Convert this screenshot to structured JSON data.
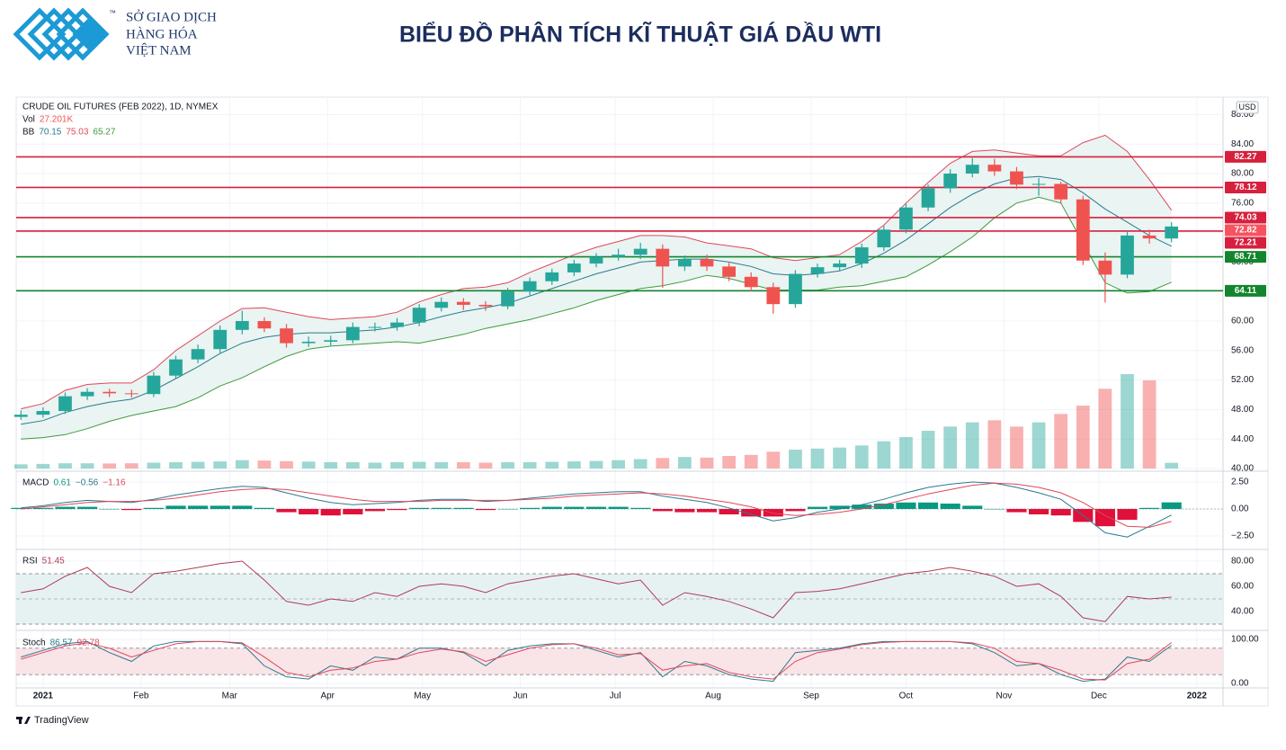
{
  "header": {
    "logo_text": [
      "SỞ GIAO DỊCH",
      "HÀNG HÓA",
      "VIỆT NAM"
    ],
    "trademark": "™",
    "title": "BIỂU ĐỒ PHÂN TÍCH KĨ THUẬT GIÁ DẦU WTI"
  },
  "footer": {
    "brand": "TradingView"
  },
  "chart_data": [
    {
      "type": "candlestick",
      "title": "CRUDE OIL FUTURES (FEB 2022), 1D, NYMEX",
      "currency": "USD",
      "x": [
        -7,
        0,
        7,
        14,
        21,
        28,
        35,
        42,
        49,
        56,
        63,
        70,
        77,
        84,
        91,
        98,
        105,
        112,
        119,
        126,
        133,
        140,
        147,
        154,
        161,
        168,
        175,
        182,
        189,
        196,
        203,
        210,
        217,
        224,
        231,
        238,
        245,
        252,
        259,
        266,
        273,
        280,
        287,
        294,
        301,
        308,
        315,
        322,
        329,
        336,
        343,
        350,
        357
      ],
      "xlim": [
        -8.5,
        373.3
      ],
      "xticks": [
        {
          "value": 0,
          "label": "2021"
        },
        {
          "value": 31,
          "label": "Feb"
        },
        {
          "value": 59,
          "label": "Mar"
        },
        {
          "value": 90,
          "label": "Apr"
        },
        {
          "value": 120,
          "label": "May"
        },
        {
          "value": 151,
          "label": "Jun"
        },
        {
          "value": 181,
          "label": "Jul"
        },
        {
          "value": 212,
          "label": "Aug"
        },
        {
          "value": 243,
          "label": "Sep"
        },
        {
          "value": 273,
          "label": "Oct"
        },
        {
          "value": 304,
          "label": "Nov"
        },
        {
          "value": 334,
          "label": "Dec"
        },
        {
          "value": 365,
          "label": "2022"
        }
      ],
      "open": [
        47.0,
        47.3,
        47.8,
        49.8,
        50.4,
        50.2,
        50.1,
        52.6,
        54.8,
        56.2,
        58.8,
        60.0,
        59.0,
        57.0,
        57.2,
        57.4,
        59.2,
        59.2,
        59.8,
        61.8,
        62.6,
        62.2,
        62.0,
        64.0,
        65.4,
        66.6,
        67.8,
        68.7,
        69.0,
        69.8,
        67.4,
        68.4,
        67.4,
        66.0,
        64.6,
        62.3,
        66.4,
        67.3,
        67.8,
        70.0,
        72.4,
        75.4,
        78.0,
        80.0,
        81.2,
        80.3,
        78.5,
        78.6,
        76.5,
        68.2,
        66.3,
        71.6,
        71.2
      ],
      "high": [
        47.9,
        48.3,
        50.3,
        50.9,
        50.8,
        50.7,
        53.1,
        55.3,
        56.8,
        59.4,
        61.4,
        60.5,
        59.6,
        57.9,
        58.0,
        59.8,
        59.8,
        60.4,
        62.3,
        63.2,
        63.1,
        62.7,
        64.5,
        65.9,
        67.1,
        68.3,
        69.2,
        69.8,
        70.6,
        70.4,
        68.9,
        69.0,
        67.9,
        66.6,
        65.2,
        66.9,
        67.8,
        68.3,
        70.5,
        72.9,
        75.9,
        78.5,
        80.6,
        82.1,
        82.0,
        80.9,
        79.4,
        78.9,
        77.0,
        69.3,
        72.1,
        72.4,
        73.4
      ],
      "low": [
        46.6,
        46.9,
        47.4,
        49.3,
        49.7,
        49.6,
        49.7,
        52.2,
        54.3,
        55.7,
        58.2,
        58.5,
        56.4,
        56.5,
        56.7,
        57.0,
        58.6,
        58.7,
        59.3,
        61.3,
        61.5,
        61.4,
        61.6,
        63.5,
        64.9,
        66.1,
        67.3,
        68.2,
        68.4,
        64.5,
        66.8,
        66.8,
        65.4,
        64.0,
        61.0,
        61.8,
        65.9,
        66.8,
        67.2,
        69.5,
        71.9,
        74.9,
        77.4,
        79.5,
        79.7,
        77.9,
        77.0,
        75.9,
        67.6,
        62.5,
        65.8,
        70.5,
        70.7
      ],
      "close": [
        47.3,
        47.8,
        49.8,
        50.4,
        50.2,
        50.1,
        52.6,
        54.8,
        56.2,
        58.8,
        60.0,
        59.0,
        57.0,
        57.2,
        57.4,
        59.2,
        59.2,
        59.8,
        61.8,
        62.6,
        62.2,
        62.0,
        64.0,
        65.4,
        66.6,
        67.8,
        68.7,
        69.0,
        69.8,
        67.4,
        68.4,
        67.4,
        66.0,
        64.6,
        62.3,
        66.4,
        67.3,
        67.8,
        70.0,
        72.4,
        75.4,
        78.0,
        80.0,
        81.2,
        80.3,
        78.5,
        78.6,
        76.5,
        68.2,
        66.3,
        71.6,
        71.2,
        72.82
      ],
      "up_color": "#26a69a",
      "down_color": "#ef5350",
      "last_price": 72.82,
      "last_price_color": "#f7525f",
      "ylim": [
        40,
        90.37
      ],
      "yticks": [
        {
          "value": 40,
          "label": "40.00"
        },
        {
          "value": 44,
          "label": "44.00"
        },
        {
          "value": 48,
          "label": "48.00"
        },
        {
          "value": 52,
          "label": "52.00"
        },
        {
          "value": 56,
          "label": "56.00"
        },
        {
          "value": 60,
          "label": "60.00"
        },
        {
          "value": 64,
          "label": "64.00"
        },
        {
          "value": 68,
          "label": "68.00"
        },
        {
          "value": 72,
          "label": "72.00"
        },
        {
          "value": 76,
          "label": "76.00"
        },
        {
          "value": 80,
          "label": "80.00"
        },
        {
          "value": 84,
          "label": "84.00"
        },
        {
          "value": 88,
          "label": "88.00"
        }
      ],
      "grid": true,
      "volume": {
        "name": "Vol",
        "last_label": "27.201K",
        "label_color": "#ef5350",
        "values": [
          20,
          22,
          25,
          25,
          24,
          25,
          28,
          30,
          32,
          34,
          40,
          38,
          35,
          33,
          30,
          30,
          28,
          30,
          32,
          30,
          30,
          28,
          30,
          30,
          32,
          34,
          36,
          40,
          45,
          50,
          55,
          52,
          60,
          65,
          80,
          90,
          95,
          100,
          110,
          130,
          150,
          180,
          200,
          220,
          230,
          200,
          220,
          260,
          300,
          380,
          450,
          420,
          27.201
        ]
      },
      "bollinger": {
        "name": "BB",
        "fill": "#e9f4f3",
        "series": [
          {
            "color": "#2b7a8c",
            "values": [
              46.0,
              46.5,
              47.6,
              48.4,
              49.0,
              49.4,
              50.6,
              52.2,
              53.8,
              55.6,
              57.0,
              57.8,
              58.2,
              58.4,
              58.4,
              58.6,
              58.8,
              59.2,
              59.8,
              60.6,
              61.3,
              61.8,
              62.4,
              63.4,
              64.4,
              65.4,
              66.4,
              67.2,
              68.0,
              68.2,
              68.4,
              68.4,
              68.0,
              67.4,
              66.4,
              66.2,
              66.4,
              66.8,
              67.8,
              69.2,
              71.0,
              73.2,
              75.4,
              77.2,
              78.6,
              79.4,
              79.6,
              79.2,
              77.4,
              75.2,
              73.4,
              71.6,
              70.15
            ]
          },
          {
            "color": "#e0475a",
            "values": [
              48.1,
              48.8,
              50.6,
              51.4,
              51.6,
              51.6,
              53.4,
              56.0,
              58.0,
              60.0,
              61.7,
              61.8,
              61.2,
              60.6,
              60.2,
              60.4,
              60.6,
              61.2,
              62.6,
              63.6,
              64.4,
              64.6,
              65.2,
              66.6,
              67.8,
              69.0,
              70.0,
              70.8,
              71.6,
              71.6,
              71.4,
              70.6,
              70.2,
              69.8,
              68.6,
              68.2,
              68.6,
              69.0,
              70.8,
              73.0,
              76.0,
              78.8,
              81.4,
              83.0,
              83.2,
              82.8,
              82.4,
              82.4,
              84.2,
              85.2,
              83.0,
              79.2,
              75.03
            ]
          },
          {
            "color": "#3f9a3a",
            "values": [
              44.0,
              44.2,
              44.6,
              45.4,
              46.4,
              47.2,
              47.8,
              48.4,
              49.6,
              51.2,
              52.3,
              53.8,
              55.2,
              56.2,
              56.6,
              56.8,
              57.0,
              57.2,
              57.0,
              57.6,
              58.2,
              59.0,
              59.6,
              60.2,
              61.0,
              61.8,
              62.8,
              63.6,
              64.4,
              64.8,
              65.4,
              66.2,
              65.8,
              65.0,
              64.2,
              64.2,
              64.2,
              64.6,
              64.8,
              65.4,
              66.0,
              67.6,
              69.4,
              71.4,
              74.0,
              76.0,
              76.8,
              76.0,
              70.6,
              65.2,
              63.8,
              64.0,
              65.27
            ]
          }
        ]
      },
      "levels": [
        {
          "value": 82.27,
          "color": "#d6203d"
        },
        {
          "value": 78.12,
          "color": "#d6203d"
        },
        {
          "value": 74.03,
          "color": "#d6203d"
        },
        {
          "value": 72.21,
          "color": "#d6203d"
        },
        {
          "value": 68.71,
          "color": "#13852d"
        },
        {
          "value": 64.11,
          "color": "#13852d"
        }
      ]
    },
    {
      "type": "macd",
      "name": "MACD",
      "ylim": [
        -3.67,
        3.25
      ],
      "yticks": [
        {
          "value": 2.5,
          "label": "2.50"
        },
        {
          "value": 0,
          "label": "0.00"
        },
        {
          "value": -2.5,
          "label": "−2.50"
        }
      ],
      "legend": [
        0.61,
        "−0.56",
        "−1.16"
      ],
      "legend_colors": [
        "#089981",
        "#2b7a8c",
        "#e0475a"
      ],
      "histogram": {
        "up_color": "#089981",
        "down_color": "#e0103a",
        "values": [
          0.1,
          0.1,
          0.2,
          0.2,
          0,
          -0.1,
          0.1,
          0.3,
          0.3,
          0.3,
          0.3,
          0.1,
          -0.3,
          -0.5,
          -0.6,
          -0.5,
          -0.2,
          -0.1,
          0.1,
          0.1,
          0.1,
          -0.1,
          0,
          0.1,
          0.2,
          0.2,
          0.2,
          0.2,
          0.1,
          -0.2,
          -0.3,
          -0.3,
          -0.5,
          -0.7,
          -0.7,
          -0.2,
          0.2,
          0.3,
          0.4,
          0.5,
          0.6,
          0.6,
          0.5,
          0.3,
          0,
          -0.3,
          -0.5,
          -0.6,
          -1.2,
          -1.6,
          -1.0,
          0.1,
          0.61
        ]
      },
      "series": [
        {
          "color": "#2b7a8c",
          "values": [
            0.1,
            0.3,
            0.6,
            0.8,
            0.7,
            0.6,
            0.9,
            1.3,
            1.6,
            1.9,
            2.1,
            2.0,
            1.5,
            1.0,
            0.6,
            0.4,
            0.5,
            0.6,
            0.8,
            0.9,
            0.9,
            0.7,
            0.8,
            1.0,
            1.2,
            1.4,
            1.5,
            1.6,
            1.6,
            1.2,
            0.9,
            0.6,
            0.1,
            -0.5,
            -1.1,
            -0.8,
            -0.3,
            0.0,
            0.4,
            0.9,
            1.5,
            2.0,
            2.3,
            2.5,
            2.4,
            2.0,
            1.5,
            0.9,
            -0.6,
            -2.2,
            -2.6,
            -1.6,
            -0.56
          ]
        },
        {
          "color": "#e0475a",
          "values": [
            0.0,
            0.2,
            0.4,
            0.6,
            0.7,
            0.7,
            0.8,
            1.0,
            1.3,
            1.6,
            1.8,
            1.9,
            1.8,
            1.5,
            1.2,
            0.9,
            0.7,
            0.7,
            0.7,
            0.8,
            0.8,
            0.8,
            0.8,
            0.9,
            1.0,
            1.2,
            1.3,
            1.4,
            1.5,
            1.4,
            1.2,
            0.9,
            0.6,
            0.2,
            -0.4,
            -0.6,
            -0.5,
            -0.3,
            0.0,
            0.4,
            0.9,
            1.4,
            1.8,
            2.2,
            2.4,
            2.3,
            2.0,
            1.5,
            0.6,
            -0.6,
            -1.6,
            -1.7,
            -1.16
          ]
        }
      ]
    },
    {
      "type": "line",
      "name": "RSI",
      "ylim": [
        25.7,
        88.6
      ],
      "yticks": [
        {
          "value": 80,
          "label": "80.00"
        },
        {
          "value": 60,
          "label": "60.00"
        },
        {
          "value": 40,
          "label": "40.00"
        }
      ],
      "legend": [
        51.45
      ],
      "legend_colors": [
        "#b03a5b"
      ],
      "band": [
        30,
        70
      ],
      "midline": 50,
      "band_color": "#e6f2f1",
      "series": [
        {
          "color": "#b03a5b",
          "values": [
            55,
            58,
            68,
            75,
            60,
            55,
            70,
            72,
            75,
            78,
            80,
            65,
            48,
            45,
            50,
            48,
            55,
            52,
            60,
            62,
            60,
            55,
            62,
            65,
            68,
            70,
            66,
            62,
            65,
            45,
            55,
            52,
            48,
            42,
            35,
            55,
            56,
            58,
            62,
            66,
            70,
            72,
            75,
            72,
            68,
            60,
            62,
            52,
            35,
            32,
            52,
            50,
            51.45
          ]
        }
      ]
    },
    {
      "type": "line",
      "name": "Stoch",
      "ylim": [
        -10.2,
        116.3
      ],
      "yticks": [
        {
          "value": 100,
          "label": "100.00"
        },
        {
          "value": 0,
          "label": "0.00"
        }
      ],
      "legend": [
        86.57,
        92.78
      ],
      "legend_colors": [
        "#2b7a8c",
        "#e0475a"
      ],
      "band": [
        20,
        80
      ],
      "band_color": "#f9e4e8",
      "series": [
        {
          "color": "#2b7a8c",
          "values": [
            60,
            75,
            90,
            95,
            70,
            50,
            85,
            95,
            95,
            95,
            90,
            40,
            15,
            10,
            40,
            30,
            60,
            55,
            80,
            80,
            70,
            40,
            75,
            85,
            90,
            90,
            75,
            60,
            70,
            15,
            50,
            40,
            20,
            10,
            5,
            70,
            75,
            80,
            90,
            95,
            95,
            95,
            95,
            90,
            70,
            40,
            45,
            20,
            5,
            10,
            60,
            50,
            86.57
          ]
        },
        {
          "color": "#e0475a",
          "values": [
            55,
            70,
            85,
            92,
            80,
            60,
            75,
            90,
            95,
            95,
            92,
            60,
            25,
            15,
            30,
            35,
            50,
            55,
            70,
            78,
            72,
            50,
            65,
            80,
            88,
            90,
            80,
            65,
            68,
            30,
            40,
            45,
            25,
            15,
            10,
            50,
            70,
            78,
            88,
            93,
            95,
            95,
            95,
            92,
            80,
            50,
            45,
            30,
            10,
            8,
            45,
            55,
            92.78
          ]
        }
      ]
    }
  ]
}
